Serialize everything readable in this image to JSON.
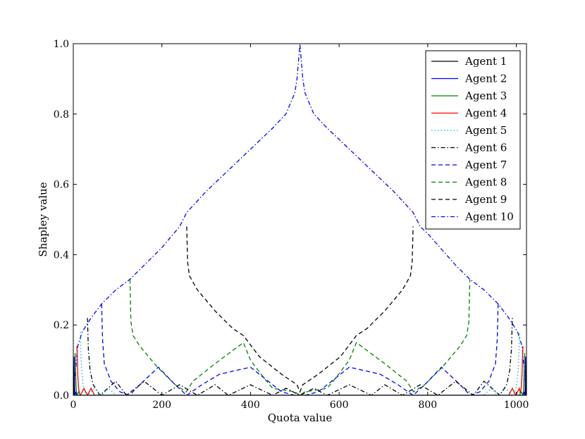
{
  "chart_data": {
    "type": "line",
    "title": "",
    "xlabel": "Quota value",
    "ylabel": "Shapley value",
    "xlim": [
      0,
      1023
    ],
    "ylim": [
      0,
      1
    ],
    "xticks": [
      0,
      200,
      400,
      600,
      800,
      1000
    ],
    "yticks": [
      0.0,
      0.2,
      0.4,
      0.6,
      0.8,
      1.0
    ],
    "xtick_labels": [
      "0",
      "200",
      "400",
      "600",
      "800",
      "1000"
    ],
    "ytick_labels": [
      "0.0",
      "0.2",
      "0.4",
      "0.6",
      "0.8",
      "1.0"
    ],
    "grid": false,
    "legend_position": "top-right",
    "series": [
      {
        "name": "Agent 1",
        "color": "#000000",
        "dash": "solid"
      },
      {
        "name": "Agent 2",
        "color": "#0000ff",
        "dash": "solid"
      },
      {
        "name": "Agent 3",
        "color": "#008000",
        "dash": "solid"
      },
      {
        "name": "Agent 4",
        "color": "#ff0000",
        "dash": "solid"
      },
      {
        "name": "Agent 5",
        "color": "#00bfbf",
        "dash": "dotted"
      },
      {
        "name": "Agent 6",
        "color": "#000000",
        "dash": "dashdot"
      },
      {
        "name": "Agent 7",
        "color": "#0000ff",
        "dash": "dashed"
      },
      {
        "name": "Agent 8",
        "color": "#008000",
        "dash": "dashed"
      },
      {
        "name": "Agent 9",
        "color": "#000000",
        "dash": "dashed"
      },
      {
        "name": "Agent 10",
        "color": "#0000ff",
        "dash": "dashdot"
      }
    ],
    "curves": [
      {
        "series": "Agent 10",
        "x": [
          0,
          10,
          20,
          40,
          64,
          96,
          128,
          160,
          200,
          240,
          256,
          300,
          350,
          400,
          450,
          480,
          500,
          505,
          511.5,
          518,
          523,
          543,
          573,
          623,
          673,
          723,
          767,
          783,
          800,
          863,
          895,
          927,
          959,
          983,
          1003,
          1013,
          1023
        ],
        "y": [
          0.0,
          0.14,
          0.18,
          0.22,
          0.26,
          0.3,
          0.33,
          0.37,
          0.42,
          0.48,
          0.52,
          0.58,
          0.64,
          0.7,
          0.76,
          0.8,
          0.86,
          0.9,
          1.0,
          0.9,
          0.86,
          0.8,
          0.76,
          0.7,
          0.64,
          0.58,
          0.52,
          0.48,
          0.46,
          0.37,
          0.33,
          0.3,
          0.26,
          0.22,
          0.18,
          0.14,
          0.0
        ]
      },
      {
        "series": "Agent 9",
        "x": [
          256,
          258,
          262,
          280,
          320,
          360,
          384,
          420,
          470,
          505,
          511.5,
          518,
          553,
          603,
          639,
          663,
          703,
          743,
          761,
          765,
          767
        ],
        "y": [
          0.48,
          0.38,
          0.34,
          0.3,
          0.24,
          0.19,
          0.17,
          0.11,
          0.06,
          0.03,
          0.01,
          0.03,
          0.06,
          0.11,
          0.17,
          0.19,
          0.24,
          0.3,
          0.34,
          0.38,
          0.48
        ]
      },
      {
        "series": "Agent 8",
        "x": [
          128,
          130,
          135,
          150,
          190,
          230,
          255,
          270,
          320,
          384,
          400,
          430,
          450,
          500,
          511.5,
          523,
          573,
          593,
          623,
          639,
          703,
          753,
          768,
          793,
          833,
          873,
          888,
          893,
          895
        ],
        "y": [
          0.33,
          0.21,
          0.17,
          0.14,
          0.08,
          0.03,
          0.01,
          0.04,
          0.09,
          0.15,
          0.1,
          0.05,
          0.02,
          0.01,
          0.0,
          0.01,
          0.02,
          0.05,
          0.1,
          0.15,
          0.09,
          0.04,
          0.01,
          0.03,
          0.08,
          0.14,
          0.17,
          0.21,
          0.33
        ]
      },
      {
        "series": "Agent 7",
        "x": [
          64,
          66,
          70,
          85,
          105,
          127,
          150,
          192,
          230,
          256,
          290,
          330,
          400,
          450,
          470,
          500,
          511.5,
          523,
          553,
          573,
          623,
          693,
          733,
          767,
          793,
          831,
          873,
          896,
          918,
          938,
          953,
          957,
          959
        ],
        "y": [
          0.26,
          0.16,
          0.09,
          0.04,
          0.01,
          0.0,
          0.03,
          0.08,
          0.03,
          0.0,
          0.03,
          0.06,
          0.08,
          0.03,
          0.01,
          0.0,
          0.0,
          0.0,
          0.01,
          0.03,
          0.08,
          0.06,
          0.03,
          0.0,
          0.03,
          0.08,
          0.03,
          0.0,
          0.01,
          0.04,
          0.09,
          0.16,
          0.26
        ]
      },
      {
        "series": "Agent 6",
        "x": [
          32,
          34,
          38,
          45,
          60,
          96,
          120,
          160,
          200,
          240,
          280,
          320,
          350,
          400,
          450,
          480,
          511.5,
          543,
          573,
          623,
          673,
          703,
          743,
          783,
          823,
          863,
          903,
          927,
          963,
          978,
          985,
          989,
          991
        ],
        "y": [
          0.22,
          0.13,
          0.07,
          0.03,
          0.0,
          0.04,
          0.0,
          0.04,
          0.0,
          0.03,
          0.0,
          0.03,
          0.0,
          0.03,
          0.0,
          0.02,
          0.0,
          0.02,
          0.0,
          0.03,
          0.0,
          0.03,
          0.0,
          0.03,
          0.0,
          0.04,
          0.0,
          0.04,
          0.0,
          0.03,
          0.07,
          0.13,
          0.22
        ]
      },
      {
        "series": "Agent 5",
        "x": [
          16,
          17,
          19,
          22,
          26,
          32,
          48,
          64,
          80,
          96,
          1023,
          927,
          943,
          959,
          975,
          991,
          997,
          1001,
          1004,
          1006,
          1007
        ],
        "y": [
          0.18,
          0.12,
          0.07,
          0.03,
          0.01,
          0.0,
          0.02,
          0.0,
          0.02,
          0.0,
          0.0,
          0.0,
          0.02,
          0.0,
          0.02,
          0.0,
          0.01,
          0.03,
          0.07,
          0.12,
          0.18
        ]
      },
      {
        "series": "Agent 4",
        "x": [
          8,
          9,
          10,
          12,
          14,
          16,
          24,
          32,
          40,
          48,
          983,
          991,
          999,
          1007,
          1009,
          1011,
          1013,
          1014,
          1015
        ],
        "y": [
          0.14,
          0.11,
          0.06,
          0.02,
          0.005,
          0.0,
          0.02,
          0.0,
          0.02,
          0.0,
          0.0,
          0.02,
          0.0,
          0.02,
          0.005,
          0.02,
          0.06,
          0.11,
          0.14
        ]
      },
      {
        "series": "Agent 3",
        "x": [
          4,
          5,
          6,
          7,
          8,
          12,
          16,
          1007,
          1011,
          1015,
          1016,
          1017,
          1018,
          1019
        ],
        "y": [
          0.12,
          0.08,
          0.03,
          0.01,
          0.0,
          0.01,
          0.0,
          0.0,
          0.01,
          0.0,
          0.01,
          0.03,
          0.08,
          0.12
        ]
      },
      {
        "series": "Agent 2",
        "x": [
          2,
          2.5,
          3,
          4,
          6,
          8,
          1015,
          1017,
          1019,
          1020,
          1020.5,
          1021
        ],
        "y": [
          0.11,
          0.07,
          0.02,
          0.0,
          0.01,
          0.0,
          0.0,
          0.01,
          0.0,
          0.02,
          0.07,
          0.11
        ]
      },
      {
        "series": "Agent 1",
        "x": [
          0,
          1,
          1.5,
          2,
          4,
          1019,
          1021,
          1021.5,
          1022,
          1023
        ],
        "y": [
          0.1,
          0.06,
          0.02,
          0.0,
          0.0,
          0.0,
          0.0,
          0.02,
          0.06,
          0.1
        ]
      }
    ]
  }
}
